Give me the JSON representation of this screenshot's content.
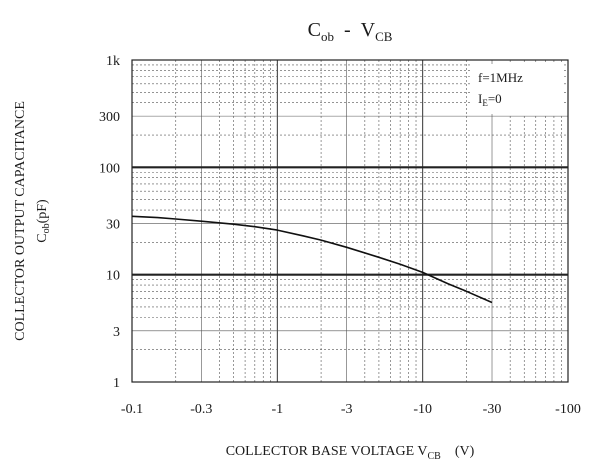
{
  "chart_data": {
    "type": "line",
    "title": {
      "main": "C",
      "main_sub": "ob",
      "sep": "-",
      "var": "V",
      "var_sub": "CB"
    },
    "xlabel": {
      "text": "COLLECTOR BASE VOLTAGE V",
      "sub": "CB",
      "unit": "(V)"
    },
    "ylabel": {
      "line1": "COLLECTOR OUTPUT CAPACITANCE",
      "line2_main": "C",
      "line2_sub": "ob",
      "line2_unit": "(pF)"
    },
    "x_scale": "log",
    "y_scale": "log",
    "xlim": [
      0.1,
      100
    ],
    "ylim": [
      1,
      1000
    ],
    "x_axis_reversed_sign": true,
    "x_ticks": [
      {
        "value": 0.1,
        "label": "-0.1"
      },
      {
        "value": 0.3,
        "label": "-0.3"
      },
      {
        "value": 1,
        "label": "-1"
      },
      {
        "value": 3,
        "label": "-3"
      },
      {
        "value": 10,
        "label": "-10"
      },
      {
        "value": 30,
        "label": "-30"
      },
      {
        "value": 100,
        "label": "-100"
      }
    ],
    "y_ticks": [
      {
        "value": 1,
        "label": "1"
      },
      {
        "value": 3,
        "label": "3"
      },
      {
        "value": 10,
        "label": "10"
      },
      {
        "value": 30,
        "label": "30"
      },
      {
        "value": 100,
        "label": "100"
      },
      {
        "value": 300,
        "label": "300"
      },
      {
        "value": 1000,
        "label": "1k"
      }
    ],
    "grid": true,
    "legend": {
      "placement": "top-right",
      "line1": "f=1MHz",
      "line2_main": "I",
      "line2_sub": "E",
      "line2_rest": "=0"
    },
    "series": [
      {
        "x": [
          0.1,
          0.15,
          0.2,
          0.3,
          0.5,
          0.7,
          1,
          1.5,
          2,
          3,
          5,
          7,
          10,
          15,
          20,
          30
        ],
        "y": [
          35,
          34,
          33,
          31.5,
          29.5,
          28,
          26,
          23,
          21,
          18,
          14.5,
          12.5,
          10.5,
          8.2,
          7,
          5.5
        ]
      }
    ]
  }
}
